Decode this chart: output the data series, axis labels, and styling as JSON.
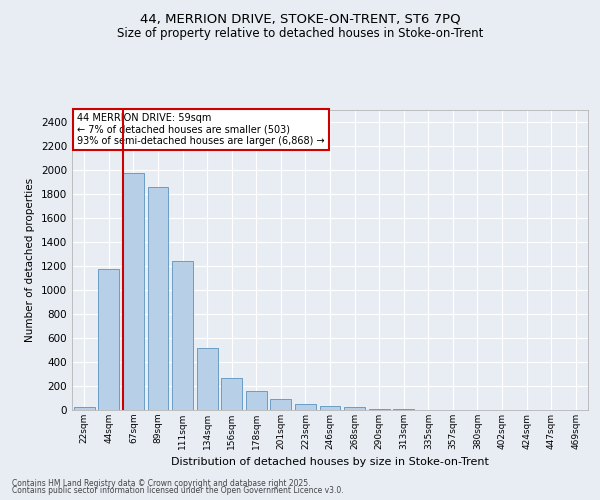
{
  "title_line1": "44, MERRION DRIVE, STOKE-ON-TRENT, ST6 7PQ",
  "title_line2": "Size of property relative to detached houses in Stoke-on-Trent",
  "xlabel": "Distribution of detached houses by size in Stoke-on-Trent",
  "ylabel": "Number of detached properties",
  "categories": [
    "22sqm",
    "44sqm",
    "67sqm",
    "89sqm",
    "111sqm",
    "134sqm",
    "156sqm",
    "178sqm",
    "201sqm",
    "223sqm",
    "246sqm",
    "268sqm",
    "290sqm",
    "313sqm",
    "335sqm",
    "357sqm",
    "380sqm",
    "402sqm",
    "424sqm",
    "447sqm",
    "469sqm"
  ],
  "values": [
    25,
    1175,
    1975,
    1855,
    1245,
    515,
    270,
    155,
    90,
    50,
    35,
    28,
    10,
    5,
    3,
    2,
    2,
    1,
    1,
    1,
    1
  ],
  "bar_color": "#b8cfe8",
  "bar_edge_color": "#6a9ec5",
  "bg_color": "#e8edf4",
  "grid_color": "#ffffff",
  "vline_color": "#cc0000",
  "vline_pos": 1.57,
  "annotation_title": "44 MERRION DRIVE: 59sqm",
  "annotation_line2": "← 7% of detached houses are smaller (503)",
  "annotation_line3": "93% of semi-detached houses are larger (6,868) →",
  "annotation_box_edgecolor": "#cc0000",
  "ylim": [
    0,
    2500
  ],
  "yticks": [
    0,
    200,
    400,
    600,
    800,
    1000,
    1200,
    1400,
    1600,
    1800,
    2000,
    2200,
    2400
  ],
  "footnote1": "Contains HM Land Registry data © Crown copyright and database right 2025.",
  "footnote2": "Contains public sector information licensed under the Open Government Licence v3.0."
}
